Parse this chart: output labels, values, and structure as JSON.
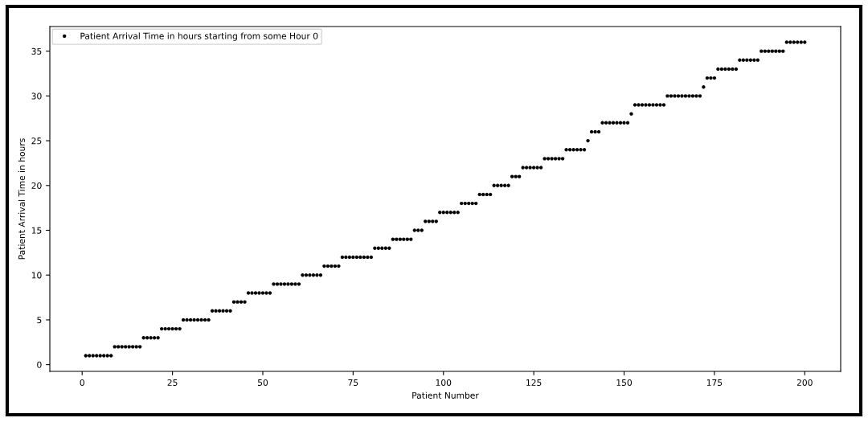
{
  "chart_data": {
    "type": "scatter",
    "xlabel": "Patient Number",
    "ylabel": "Patient Arrival Time in hours",
    "x": [
      1,
      2,
      3,
      4,
      5,
      6,
      7,
      8,
      9,
      10,
      11,
      12,
      13,
      14,
      15,
      16,
      17,
      18,
      19,
      20,
      21,
      22,
      23,
      24,
      25,
      26,
      27,
      28,
      29,
      30,
      31,
      32,
      33,
      34,
      35,
      36,
      37,
      38,
      39,
      40,
      41,
      42,
      43,
      44,
      45,
      46,
      47,
      48,
      49,
      50,
      51,
      52,
      53,
      54,
      55,
      56,
      57,
      58,
      59,
      60,
      61,
      62,
      63,
      64,
      65,
      66,
      67,
      68,
      69,
      70,
      71,
      72,
      73,
      74,
      75,
      76,
      77,
      78,
      79,
      80,
      81,
      82,
      83,
      84,
      85,
      86,
      87,
      88,
      89,
      90,
      91,
      92,
      93,
      94,
      95,
      96,
      97,
      98,
      99,
      100,
      101,
      102,
      103,
      104,
      105,
      106,
      107,
      108,
      109,
      110,
      111,
      112,
      113,
      114,
      115,
      116,
      117,
      118,
      119,
      120,
      121,
      122,
      123,
      124,
      125,
      126,
      127,
      128,
      129,
      130,
      131,
      132,
      133,
      134,
      135,
      136,
      137,
      138,
      139,
      140,
      141,
      142,
      143,
      144,
      145,
      146,
      147,
      148,
      149,
      150,
      151,
      152,
      153,
      154,
      155,
      156,
      157,
      158,
      159,
      160,
      161,
      162,
      163,
      164,
      165,
      166,
      167,
      168,
      169,
      170,
      171,
      172,
      173,
      174,
      175,
      176,
      177,
      178,
      179,
      180,
      181,
      182,
      183,
      184,
      185,
      186,
      187,
      188,
      189,
      190,
      191,
      192,
      193,
      194,
      195,
      196,
      197,
      198,
      199,
      200
    ],
    "series": [
      {
        "name": "Patient Arrival Time in hours starting from some Hour 0",
        "color": "#000000",
        "values": [
          1,
          1,
          1,
          1,
          1,
          1,
          1,
          1,
          2,
          2,
          2,
          2,
          2,
          2,
          2,
          2,
          3,
          3,
          3,
          3,
          3,
          4,
          4,
          4,
          4,
          4,
          4,
          5,
          5,
          5,
          5,
          5,
          5,
          5,
          5,
          6,
          6,
          6,
          6,
          6,
          6,
          7,
          7,
          7,
          7,
          8,
          8,
          8,
          8,
          8,
          8,
          8,
          9,
          9,
          9,
          9,
          9,
          9,
          9,
          9,
          10,
          10,
          10,
          10,
          10,
          10,
          11,
          11,
          11,
          11,
          11,
          12,
          12,
          12,
          12,
          12,
          12,
          12,
          12,
          12,
          13,
          13,
          13,
          13,
          13,
          14,
          14,
          14,
          14,
          14,
          14,
          15,
          15,
          15,
          16,
          16,
          16,
          16,
          17,
          17,
          17,
          17,
          17,
          17,
          18,
          18,
          18,
          18,
          18,
          19,
          19,
          19,
          19,
          20,
          20,
          20,
          20,
          20,
          21,
          21,
          21,
          22,
          22,
          22,
          22,
          22,
          22,
          23,
          23,
          23,
          23,
          23,
          23,
          24,
          24,
          24,
          24,
          24,
          24,
          25,
          26,
          26,
          26,
          27,
          27,
          27,
          27,
          27,
          27,
          27,
          27,
          28,
          29,
          29,
          29,
          29,
          29,
          29,
          29,
          29,
          29,
          30,
          30,
          30,
          30,
          30,
          30,
          30,
          30,
          30,
          30,
          31,
          32,
          32,
          32,
          33,
          33,
          33,
          33,
          33,
          33,
          34,
          34,
          34,
          34,
          34,
          34,
          35,
          35,
          35,
          35,
          35,
          35,
          35,
          36,
          36,
          36,
          36,
          36,
          36
        ]
      }
    ],
    "xlim": [
      -8.95,
      209.95
    ],
    "ylim": [
      -0.75,
      37.75
    ],
    "xticks": [
      0,
      25,
      50,
      75,
      100,
      125,
      150,
      175,
      200
    ],
    "yticks": [
      0,
      5,
      10,
      15,
      20,
      25,
      30,
      35
    ],
    "marker": "circle",
    "legend": "top left"
  }
}
